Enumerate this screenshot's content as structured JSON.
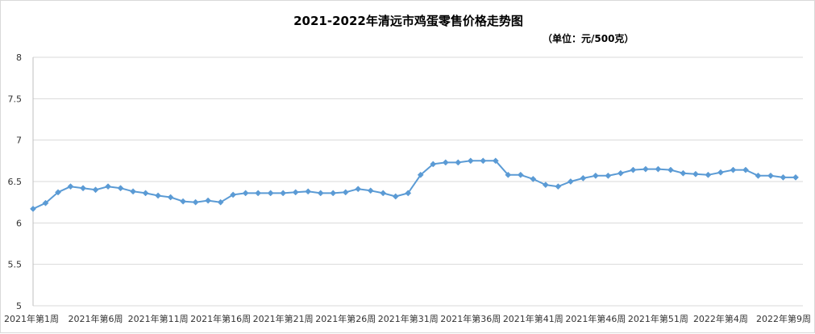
{
  "title": "2021-2022年清远市鸡蛋零售价格走势图",
  "unit": "（单位：元/500克）",
  "colors": {
    "series": "#5b9bd5",
    "grid": "#d9d9d9",
    "axis": "#bfbfbf"
  },
  "chart_data": {
    "type": "line",
    "title": "2021-2022年清远市鸡蛋零售价格走势图",
    "subtitle": "（单位：元/500克）",
    "ylim": [
      5,
      8
    ],
    "yticks": [
      "5",
      "5.5",
      "6",
      "6.5",
      "7",
      "7.5",
      "8"
    ],
    "grid": true,
    "legend": "none",
    "x_tick_labels": [
      {
        "index": 0,
        "label": "2021年第1周"
      },
      {
        "index": 5,
        "label": "2021年第6周"
      },
      {
        "index": 10,
        "label": "2021年第11周"
      },
      {
        "index": 15,
        "label": "2021年第16周"
      },
      {
        "index": 20,
        "label": "2021年第21周"
      },
      {
        "index": 25,
        "label": "2021年第26周"
      },
      {
        "index": 30,
        "label": "2021年第31周"
      },
      {
        "index": 35,
        "label": "2021年第36周"
      },
      {
        "index": 40,
        "label": "2021年第41周"
      },
      {
        "index": 45,
        "label": "2021年第46周"
      },
      {
        "index": 50,
        "label": "2021年第51周"
      },
      {
        "index": 55,
        "label": "2022年第4周"
      },
      {
        "index": 60,
        "label": "2022年第9周"
      }
    ],
    "series": [
      {
        "values": [
          6.17,
          6.24,
          6.37,
          6.44,
          6.42,
          6.4,
          6.44,
          6.42,
          6.38,
          6.36,
          6.33,
          6.31,
          6.26,
          6.25,
          6.27,
          6.25,
          6.34,
          6.36,
          6.36,
          6.36,
          6.36,
          6.37,
          6.38,
          6.36,
          6.36,
          6.37,
          6.41,
          6.39,
          6.36,
          6.32,
          6.36,
          6.58,
          6.71,
          6.73,
          6.73,
          6.75,
          6.75,
          6.75,
          6.58,
          6.58,
          6.53,
          6.46,
          6.44,
          6.5,
          6.54,
          6.57,
          6.57,
          6.6,
          6.64,
          6.65,
          6.65,
          6.64,
          6.6,
          6.59,
          6.58,
          6.61,
          6.64,
          6.64,
          6.57,
          6.57,
          6.55,
          6.55
        ]
      }
    ]
  }
}
